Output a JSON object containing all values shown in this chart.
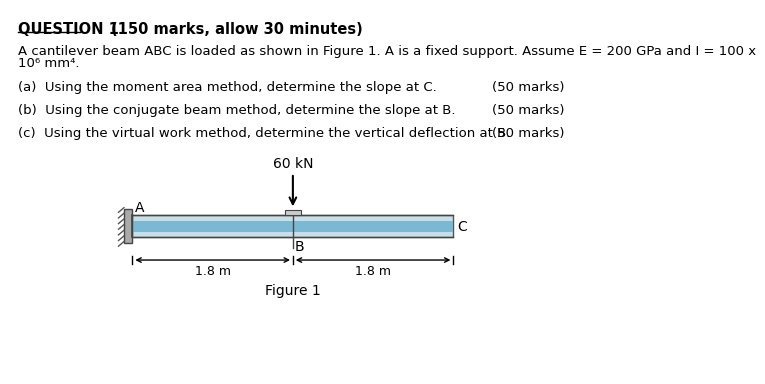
{
  "title": "QUESTION 1",
  "title_suffix": "(150 marks, allow 30 minutes)",
  "body_line1": "A cantilever beam ABC is loaded as shown in Figure 1. A is a fixed support. Assume E = 200 GPa and I = 100 x",
  "body_line2": "10⁶ mm⁴.",
  "part_a": "(a)  Using the moment area method, determine the slope at C.",
  "part_b": "(b)  Using the conjugate beam method, determine the slope at B.",
  "part_c": "(c)  Using the virtual work method, determine the vertical deflection at B.",
  "marks": "(50 marks)",
  "figure_label": "Figure 1",
  "load_label": "60 kN",
  "dim_label_left": "1.8 m",
  "dim_label_right": "1.8 m",
  "point_A": "A",
  "point_B": "B",
  "point_C": "C",
  "beam_color_light": "#c8dfe8",
  "beam_color_mid": "#7ab8d4",
  "beam_border_color": "#555555",
  "support_color": "#aaaaaa",
  "bg_color": "#ffffff"
}
